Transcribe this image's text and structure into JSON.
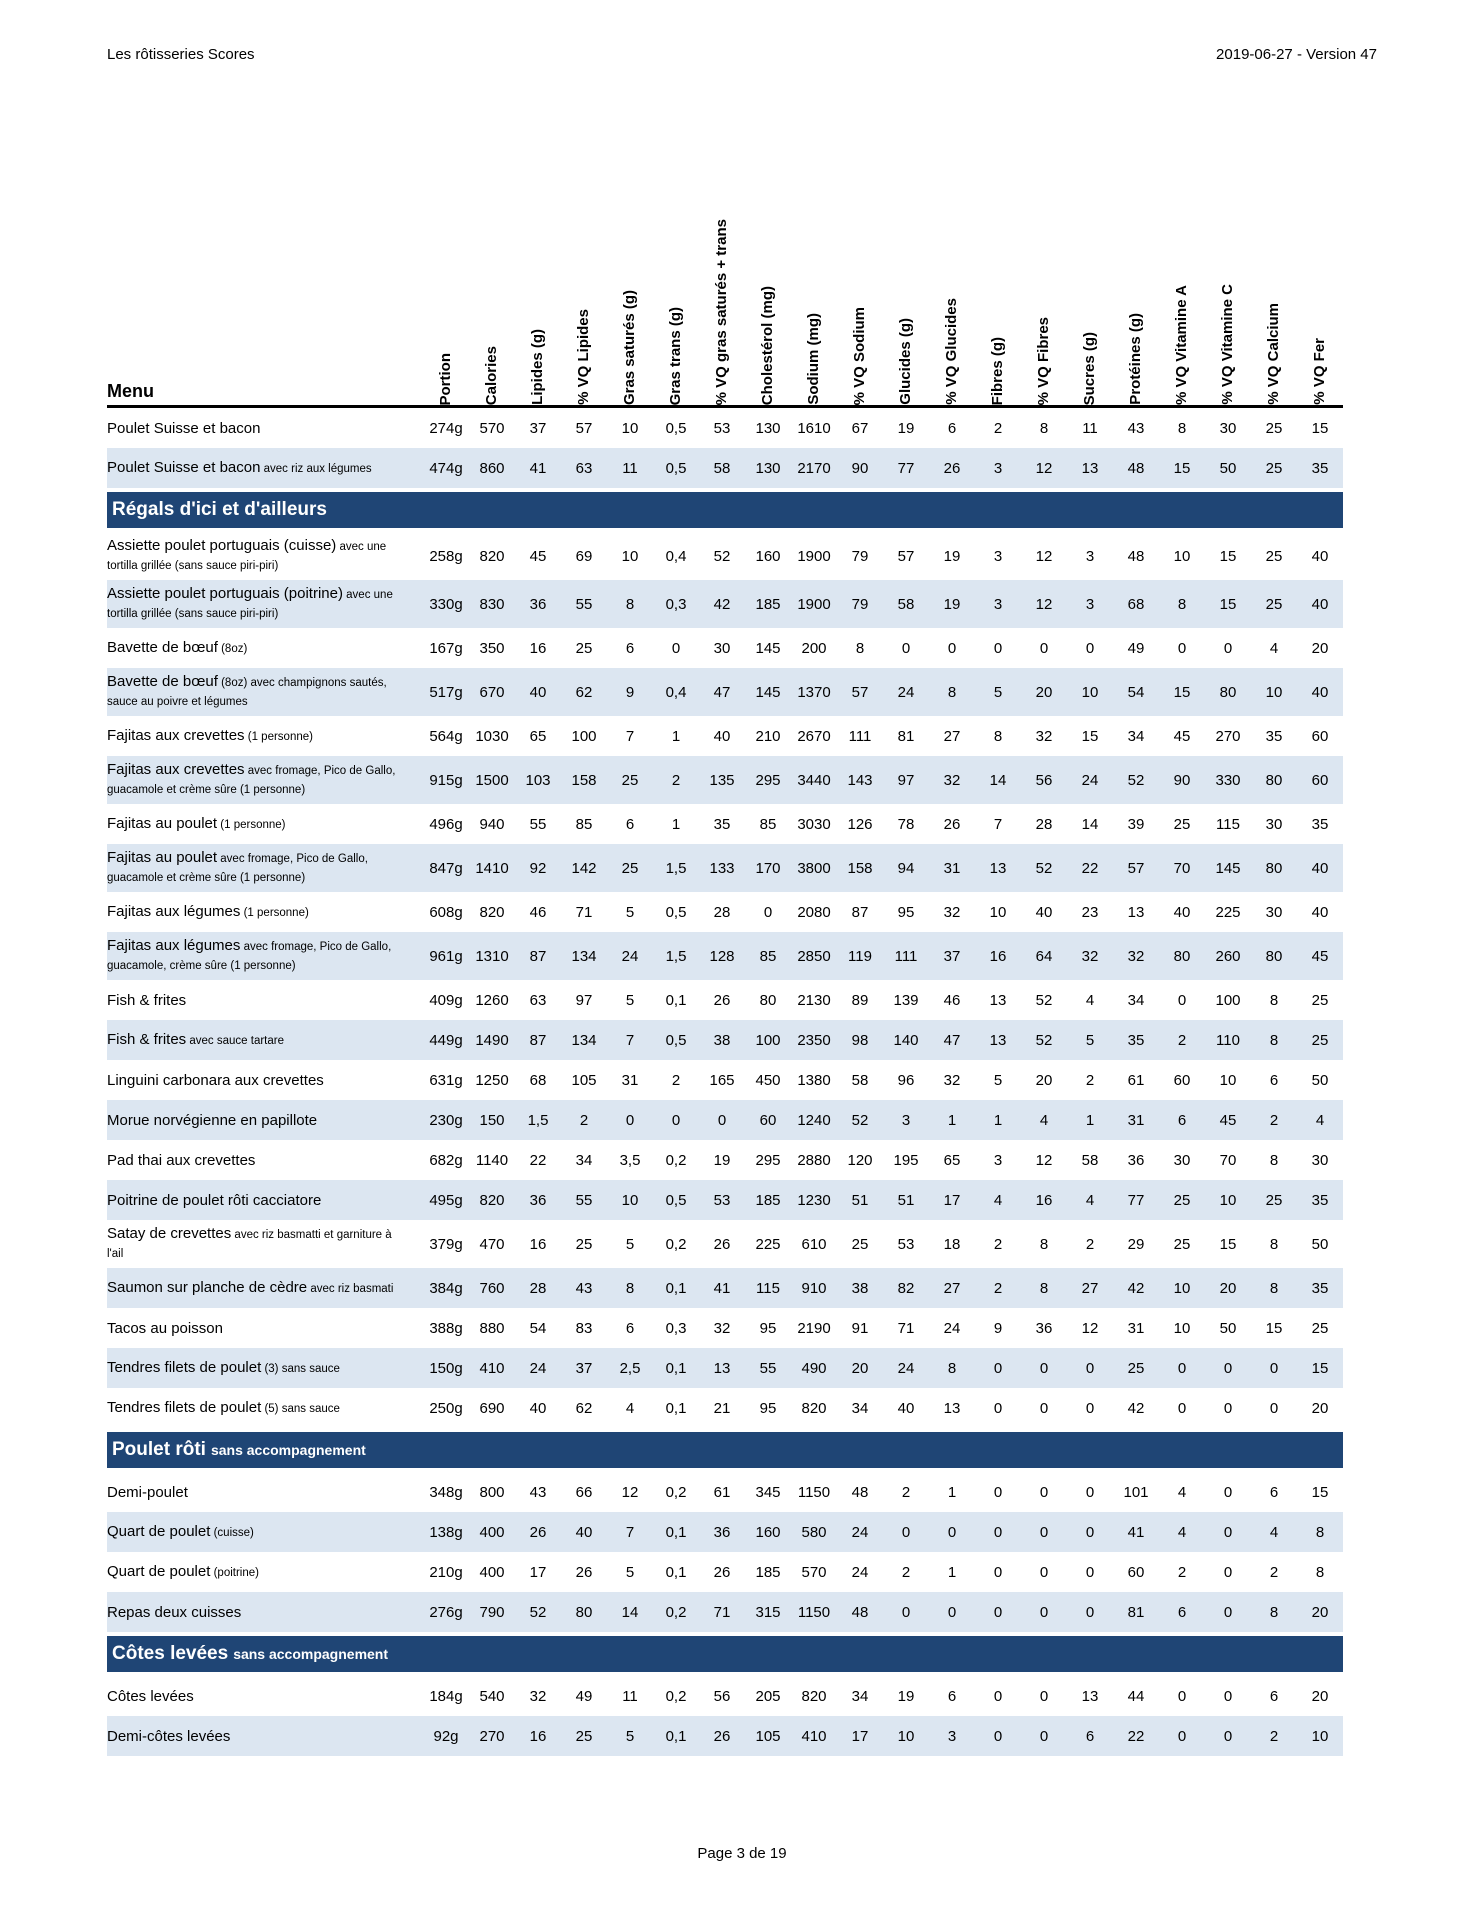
{
  "page": {
    "header_left": "Les rôtisseries Scores",
    "header_right": "2019-06-27 - Version 47",
    "footer": "Page 3 de 19"
  },
  "colors": {
    "section_bg": "#1f4575",
    "row_alt_bg": "#dce6f1",
    "section_text": "#ffffff"
  },
  "table": {
    "menu_header": "Menu",
    "columns": [
      "Portion",
      "Calories",
      "Lipides (g)",
      "% VQ Lipides",
      "Gras saturés (g)",
      "Gras trans (g)",
      "% VQ gras saturés + trans",
      "Cholestérol (mg)",
      "Sodium (mg)",
      "% VQ Sodium",
      "Glucides (g)",
      "% VQ Glucides",
      "Fibres (g)",
      "% VQ Fibres",
      "Sucres (g)",
      "Protéines (g)",
      "% VQ Vitamine A",
      "% VQ Vitamine C",
      "% VQ Calcium",
      "% VQ Fer"
    ],
    "rows": [
      {
        "type": "item",
        "name": "Poulet Suisse et bacon",
        "note": "",
        "values": [
          "274g",
          "570",
          "37",
          "57",
          "10",
          "0,5",
          "53",
          "130",
          "1610",
          "67",
          "19",
          "6",
          "2",
          "8",
          "11",
          "43",
          "8",
          "30",
          "25",
          "15"
        ]
      },
      {
        "type": "item",
        "name": "Poulet Suisse et bacon",
        "note": "avec riz aux légumes",
        "values": [
          "474g",
          "860",
          "41",
          "63",
          "11",
          "0,5",
          "58",
          "130",
          "2170",
          "90",
          "77",
          "26",
          "3",
          "12",
          "13",
          "48",
          "15",
          "50",
          "25",
          "35"
        ]
      },
      {
        "type": "section",
        "title": "Régals d'ici et d'ailleurs",
        "subtitle": ""
      },
      {
        "type": "item",
        "name": "Assiette poulet portuguais (cuisse)",
        "note": "avec une tortilla grillée (sans sauce piri-piri)",
        "values": [
          "258g",
          "820",
          "45",
          "69",
          "10",
          "0,4",
          "52",
          "160",
          "1900",
          "79",
          "57",
          "19",
          "3",
          "12",
          "3",
          "48",
          "10",
          "15",
          "25",
          "40"
        ]
      },
      {
        "type": "item",
        "name": "Assiette poulet portuguais (poitrine)",
        "note": "avec une tortilla grillée (sans sauce piri-piri)",
        "values": [
          "330g",
          "830",
          "36",
          "55",
          "8",
          "0,3",
          "42",
          "185",
          "1900",
          "79",
          "58",
          "19",
          "3",
          "12",
          "3",
          "68",
          "8",
          "15",
          "25",
          "40"
        ]
      },
      {
        "type": "item",
        "name": "Bavette de bœuf",
        "note": "(8oz)",
        "values": [
          "167g",
          "350",
          "16",
          "25",
          "6",
          "0",
          "30",
          "145",
          "200",
          "8",
          "0",
          "0",
          "0",
          "0",
          "0",
          "49",
          "0",
          "0",
          "4",
          "20"
        ]
      },
      {
        "type": "item",
        "name": "Bavette de bœuf",
        "note": "(8oz) avec champignons sautés, sauce au poivre et légumes",
        "values": [
          "517g",
          "670",
          "40",
          "62",
          "9",
          "0,4",
          "47",
          "145",
          "1370",
          "57",
          "24",
          "8",
          "5",
          "20",
          "10",
          "54",
          "15",
          "80",
          "10",
          "40"
        ]
      },
      {
        "type": "item",
        "name": "Fajitas aux crevettes",
        "note": "(1 personne)",
        "values": [
          "564g",
          "1030",
          "65",
          "100",
          "7",
          "1",
          "40",
          "210",
          "2670",
          "111",
          "81",
          "27",
          "8",
          "32",
          "15",
          "34",
          "45",
          "270",
          "35",
          "60"
        ]
      },
      {
        "type": "item",
        "name": "Fajitas aux crevettes",
        "note": "avec fromage, Pico de Gallo, guacamole et crème sûre (1 personne)",
        "values": [
          "915g",
          "1500",
          "103",
          "158",
          "25",
          "2",
          "135",
          "295",
          "3440",
          "143",
          "97",
          "32",
          "14",
          "56",
          "24",
          "52",
          "90",
          "330",
          "80",
          "60"
        ]
      },
      {
        "type": "item",
        "name": "Fajitas au poulet",
        "note": "(1 personne)",
        "values": [
          "496g",
          "940",
          "55",
          "85",
          "6",
          "1",
          "35",
          "85",
          "3030",
          "126",
          "78",
          "26",
          "7",
          "28",
          "14",
          "39",
          "25",
          "115",
          "30",
          "35"
        ]
      },
      {
        "type": "item",
        "name": "Fajitas au poulet",
        "note": "avec fromage, Pico de Gallo, guacamole et crème sûre (1 personne)",
        "values": [
          "847g",
          "1410",
          "92",
          "142",
          "25",
          "1,5",
          "133",
          "170",
          "3800",
          "158",
          "94",
          "31",
          "13",
          "52",
          "22",
          "57",
          "70",
          "145",
          "80",
          "40"
        ]
      },
      {
        "type": "item",
        "name": "Fajitas aux légumes",
        "note": "(1 personne)",
        "values": [
          "608g",
          "820",
          "46",
          "71",
          "5",
          "0,5",
          "28",
          "0",
          "2080",
          "87",
          "95",
          "32",
          "10",
          "40",
          "23",
          "13",
          "40",
          "225",
          "30",
          "40"
        ]
      },
      {
        "type": "item",
        "name": "Fajitas aux légumes",
        "note": "avec fromage, Pico de Gallo, guacamole, crème sûre (1 personne)",
        "values": [
          "961g",
          "1310",
          "87",
          "134",
          "24",
          "1,5",
          "128",
          "85",
          "2850",
          "119",
          "111",
          "37",
          "16",
          "64",
          "32",
          "32",
          "80",
          "260",
          "80",
          "45"
        ]
      },
      {
        "type": "item",
        "name": "Fish & frites",
        "note": "",
        "values": [
          "409g",
          "1260",
          "63",
          "97",
          "5",
          "0,1",
          "26",
          "80",
          "2130",
          "89",
          "139",
          "46",
          "13",
          "52",
          "4",
          "34",
          "0",
          "100",
          "8",
          "25"
        ]
      },
      {
        "type": "item",
        "name": "Fish & frites",
        "note": "avec sauce tartare",
        "values": [
          "449g",
          "1490",
          "87",
          "134",
          "7",
          "0,5",
          "38",
          "100",
          "2350",
          "98",
          "140",
          "47",
          "13",
          "52",
          "5",
          "35",
          "2",
          "110",
          "8",
          "25"
        ]
      },
      {
        "type": "item",
        "name": "Linguini carbonara aux crevettes",
        "note": "",
        "values": [
          "631g",
          "1250",
          "68",
          "105",
          "31",
          "2",
          "165",
          "450",
          "1380",
          "58",
          "96",
          "32",
          "5",
          "20",
          "2",
          "61",
          "60",
          "10",
          "6",
          "50"
        ]
      },
      {
        "type": "item",
        "name": "Morue norvégienne en papillote",
        "note": "",
        "values": [
          "230g",
          "150",
          "1,5",
          "2",
          "0",
          "0",
          "0",
          "60",
          "1240",
          "52",
          "3",
          "1",
          "1",
          "4",
          "1",
          "31",
          "6",
          "45",
          "2",
          "4"
        ]
      },
      {
        "type": "item",
        "name": "Pad thai aux crevettes",
        "note": "",
        "values": [
          "682g",
          "1140",
          "22",
          "34",
          "3,5",
          "0,2",
          "19",
          "295",
          "2880",
          "120",
          "195",
          "65",
          "3",
          "12",
          "58",
          "36",
          "30",
          "70",
          "8",
          "30"
        ]
      },
      {
        "type": "item",
        "name": "Poitrine de poulet rôti cacciatore",
        "note": "",
        "values": [
          "495g",
          "820",
          "36",
          "55",
          "10",
          "0,5",
          "53",
          "185",
          "1230",
          "51",
          "51",
          "17",
          "4",
          "16",
          "4",
          "77",
          "25",
          "10",
          "25",
          "35"
        ]
      },
      {
        "type": "item",
        "name": "Satay de crevettes",
        "note": "avec riz basmatti et garniture à l'ail",
        "values": [
          "379g",
          "470",
          "16",
          "25",
          "5",
          "0,2",
          "26",
          "225",
          "610",
          "25",
          "53",
          "18",
          "2",
          "8",
          "2",
          "29",
          "25",
          "15",
          "8",
          "50"
        ]
      },
      {
        "type": "item",
        "name": "Saumon sur planche de cèdre",
        "note": "avec riz basmati",
        "values": [
          "384g",
          "760",
          "28",
          "43",
          "8",
          "0,1",
          "41",
          "115",
          "910",
          "38",
          "82",
          "27",
          "2",
          "8",
          "27",
          "42",
          "10",
          "20",
          "8",
          "35"
        ]
      },
      {
        "type": "item",
        "name": "Tacos au poisson",
        "note": "",
        "values": [
          "388g",
          "880",
          "54",
          "83",
          "6",
          "0,3",
          "32",
          "95",
          "2190",
          "91",
          "71",
          "24",
          "9",
          "36",
          "12",
          "31",
          "10",
          "50",
          "15",
          "25"
        ]
      },
      {
        "type": "item",
        "name": "Tendres filets de poulet",
        "note": "(3) sans sauce",
        "values": [
          "150g",
          "410",
          "24",
          "37",
          "2,5",
          "0,1",
          "13",
          "55",
          "490",
          "20",
          "24",
          "8",
          "0",
          "0",
          "0",
          "25",
          "0",
          "0",
          "0",
          "15"
        ]
      },
      {
        "type": "item",
        "name": "Tendres filets de poulet",
        "note": "(5) sans sauce",
        "values": [
          "250g",
          "690",
          "40",
          "62",
          "4",
          "0,1",
          "21",
          "95",
          "820",
          "34",
          "40",
          "13",
          "0",
          "0",
          "0",
          "42",
          "0",
          "0",
          "0",
          "20"
        ]
      },
      {
        "type": "section",
        "title": "Poulet rôti",
        "subtitle": "sans accompagnement"
      },
      {
        "type": "item",
        "name": "Demi-poulet",
        "note": "",
        "values": [
          "348g",
          "800",
          "43",
          "66",
          "12",
          "0,2",
          "61",
          "345",
          "1150",
          "48",
          "2",
          "1",
          "0",
          "0",
          "0",
          "101",
          "4",
          "0",
          "6",
          "15"
        ]
      },
      {
        "type": "item",
        "name": "Quart de poulet",
        "note": "(cuisse)",
        "values": [
          "138g",
          "400",
          "26",
          "40",
          "7",
          "0,1",
          "36",
          "160",
          "580",
          "24",
          "0",
          "0",
          "0",
          "0",
          "0",
          "41",
          "4",
          "0",
          "4",
          "8"
        ]
      },
      {
        "type": "item",
        "name": "Quart de poulet",
        "note": "(poitrine)",
        "values": [
          "210g",
          "400",
          "17",
          "26",
          "5",
          "0,1",
          "26",
          "185",
          "570",
          "24",
          "2",
          "1",
          "0",
          "0",
          "0",
          "60",
          "2",
          "0",
          "2",
          "8"
        ]
      },
      {
        "type": "item",
        "name": "Repas deux cuisses",
        "note": "",
        "values": [
          "276g",
          "790",
          "52",
          "80",
          "14",
          "0,2",
          "71",
          "315",
          "1150",
          "48",
          "0",
          "0",
          "0",
          "0",
          "0",
          "81",
          "6",
          "0",
          "8",
          "20"
        ]
      },
      {
        "type": "section",
        "title": "Côtes levées",
        "subtitle": "sans accompagnement"
      },
      {
        "type": "item",
        "name": "Côtes levées",
        "note": "",
        "values": [
          "184g",
          "540",
          "32",
          "49",
          "11",
          "0,2",
          "56",
          "205",
          "820",
          "34",
          "19",
          "6",
          "0",
          "0",
          "13",
          "44",
          "0",
          "0",
          "6",
          "20"
        ]
      },
      {
        "type": "item",
        "name": "Demi-côtes levées",
        "note": "",
        "values": [
          "92g",
          "270",
          "16",
          "25",
          "5",
          "0,1",
          "26",
          "105",
          "410",
          "17",
          "10",
          "3",
          "0",
          "0",
          "6",
          "22",
          "0",
          "0",
          "2",
          "10"
        ]
      }
    ]
  }
}
